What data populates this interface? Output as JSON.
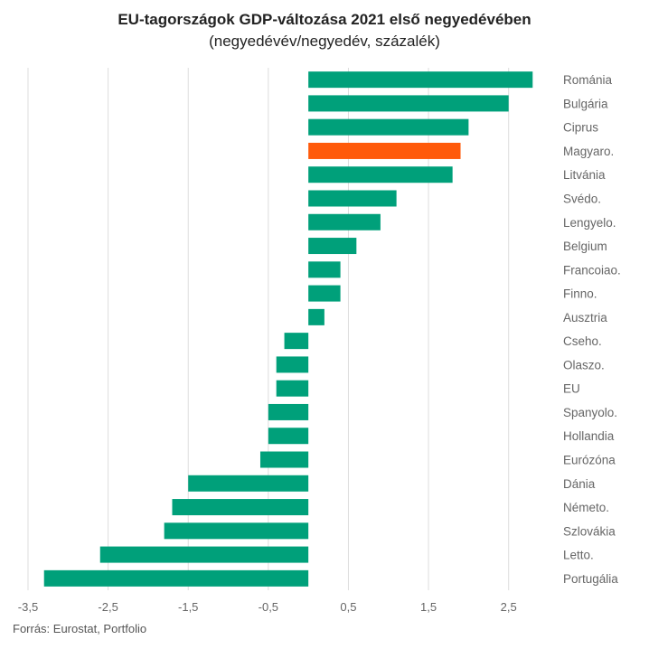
{
  "chart_data": {
    "type": "bar",
    "orientation": "horizontal",
    "title": "EU-tagországok GDP-változása 2021 első negyedévében",
    "subtitle": "(negyedévév/negyedév, százalék)",
    "categories": [
      "Románia",
      "Bulgária",
      "Ciprus",
      "Magyaro.",
      "Litvánia",
      "Svédo.",
      "Lengyelo.",
      "Belgium",
      "Francoiao.",
      "Finno.",
      "Ausztria",
      "Cseho.",
      "Olaszo.",
      "EU",
      "Spanyolo.",
      "Hollandia",
      "Eurózóna",
      "Dánia",
      "Németo.",
      "Szlovákia",
      "Letto.",
      "Portugália"
    ],
    "values": [
      2.8,
      2.5,
      2.0,
      1.9,
      1.8,
      1.1,
      0.9,
      0.6,
      0.4,
      0.4,
      0.2,
      -0.3,
      -0.4,
      -0.4,
      -0.5,
      -0.5,
      -0.6,
      -1.5,
      -1.7,
      -1.8,
      -2.6,
      -3.3
    ],
    "highlight": "Magyaro.",
    "colors": {
      "bar": "#00a07a",
      "highlight": "#ff5a0a",
      "grid": "#dddddd"
    },
    "xlim": [
      -3.5,
      3.0
    ],
    "xticks": [
      -3.5,
      -2.5,
      -1.5,
      -0.5,
      0.5,
      1.5,
      2.5
    ],
    "xtick_labels": [
      "-3,5",
      "-2,5",
      "-1,5",
      "-0,5",
      "0,5",
      "1,5",
      "2,5"
    ],
    "grid": true,
    "legend": false
  },
  "source": "Forrás: Eurostat, Portfolio"
}
